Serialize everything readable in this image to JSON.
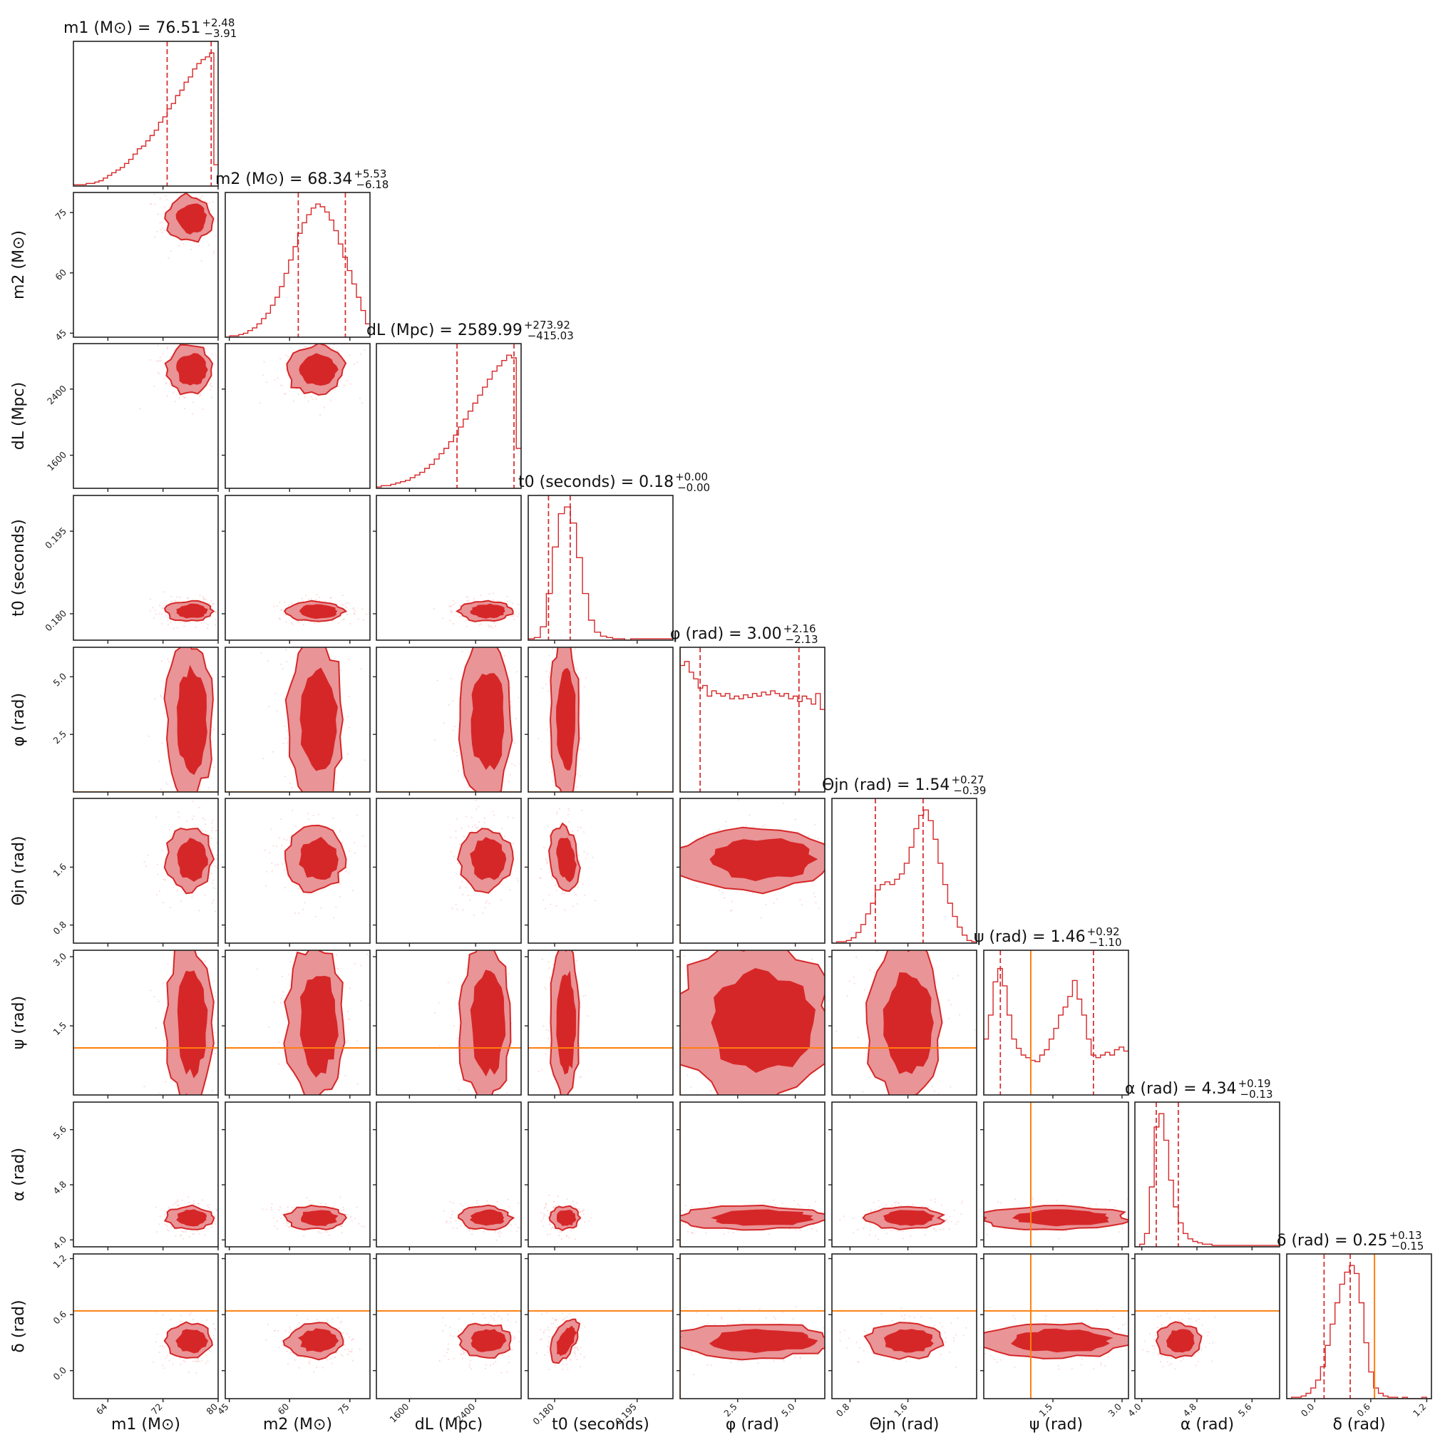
{
  "chart_data": {
    "type": "corner",
    "parameters": [
      {
        "key": "m1",
        "label": "m1 (M⊙)",
        "title": "m1 (M⊙) = 76.51",
        "median": 76.51,
        "plus": "+2.48",
        "minus": "−3.91",
        "range": [
          59,
          80
        ],
        "ticks": [
          64,
          72,
          80
        ],
        "tick_labels": [
          "64",
          "72",
          "80"
        ],
        "hist": [
          0.01,
          0.01,
          0.01,
          0.02,
          0.02,
          0.03,
          0.04,
          0.06,
          0.08,
          0.1,
          0.12,
          0.14,
          0.17,
          0.2,
          0.24,
          0.28,
          0.3,
          0.34,
          0.38,
          0.42,
          0.48,
          0.52,
          0.58,
          0.62,
          0.68,
          0.72,
          0.78,
          0.82,
          0.88,
          0.92,
          0.95,
          0.97,
          1.0,
          0.16
        ]
      },
      {
        "key": "m2",
        "label": "m2 (M⊙)",
        "title": "m2 (M⊙) = 68.34",
        "median": 68.34,
        "plus": "+5.53",
        "minus": "−6.18",
        "range": [
          44,
          80
        ],
        "ticks": [
          45,
          60,
          75
        ],
        "tick_labels": [
          "45",
          "60",
          "75"
        ],
        "hist": [
          0.0,
          0.01,
          0.01,
          0.02,
          0.03,
          0.05,
          0.07,
          0.1,
          0.14,
          0.18,
          0.24,
          0.3,
          0.38,
          0.48,
          0.58,
          0.68,
          0.78,
          0.86,
          0.92,
          0.97,
          1.0,
          0.98,
          0.94,
          0.88,
          0.8,
          0.7,
          0.6,
          0.5,
          0.4,
          0.3,
          0.2,
          0.1
        ]
      },
      {
        "key": "dL",
        "label": "dL (Mpc)",
        "title": "dL (Mpc) = 2589.99",
        "median": 2589.99,
        "plus": "+273.92",
        "minus": "−415.03",
        "range": [
          1200,
          2950
        ],
        "ticks": [
          1600,
          2400
        ],
        "tick_labels": [
          "1600",
          "2400"
        ],
        "hist": [
          0.01,
          0.02,
          0.02,
          0.03,
          0.04,
          0.05,
          0.06,
          0.08,
          0.1,
          0.12,
          0.15,
          0.18,
          0.22,
          0.26,
          0.3,
          0.35,
          0.4,
          0.46,
          0.52,
          0.58,
          0.64,
          0.7,
          0.76,
          0.82,
          0.88,
          0.92,
          0.96,
          1.0,
          0.98,
          0.3
        ]
      },
      {
        "key": "t0",
        "label": "t0 (seconds)",
        "title": "t0 (seconds) = 0.18",
        "median": 0.18,
        "plus": "+0.00",
        "minus": "−0.00",
        "range": [
          0.1752,
          0.2015
        ],
        "ticks": [
          0.18,
          0.195
        ],
        "tick_labels": [
          "0.180",
          "0.195"
        ],
        "hist": [
          0.01,
          0.02,
          0.1,
          0.35,
          0.7,
          0.95,
          1.0,
          0.88,
          0.62,
          0.35,
          0.15,
          0.06,
          0.03,
          0.02,
          0.01,
          0.01,
          0.0,
          0.01,
          0.01,
          0.01,
          0.01,
          0.01,
          0.01,
          0.01
        ]
      },
      {
        "key": "phi",
        "label": "φ (rad)",
        "title": "φ (rad) = 3.00",
        "median": 3.0,
        "plus": "+2.16",
        "minus": "−2.13",
        "range": [
          0.0,
          6.28
        ],
        "ticks": [
          2.5,
          5.0
        ],
        "tick_labels": [
          "2.5",
          "5.0"
        ],
        "hist": [
          0.95,
          0.98,
          0.9,
          0.85,
          0.78,
          0.8,
          0.72,
          0.76,
          0.74,
          0.72,
          0.74,
          0.7,
          0.72,
          0.7,
          0.73,
          0.71,
          0.74,
          0.72,
          0.75,
          0.73,
          0.76,
          0.74,
          0.72,
          0.74,
          0.7,
          0.72,
          0.68,
          0.72,
          0.7,
          0.66,
          0.74,
          0.62
        ]
      },
      {
        "key": "theta_jn",
        "label": "Θjn (rad)",
        "title": "Θjn (rad) = 1.54",
        "median": 1.54,
        "plus": "+0.27",
        "minus": "−0.39",
        "range": [
          0.55,
          2.55
        ],
        "ticks": [
          0.8,
          1.6
        ],
        "tick_labels": [
          "0.8",
          "1.6"
        ],
        "hist": [
          0.0,
          0.01,
          0.01,
          0.02,
          0.04,
          0.08,
          0.14,
          0.22,
          0.3,
          0.4,
          0.44,
          0.46,
          0.44,
          0.48,
          0.52,
          0.6,
          0.72,
          0.86,
          0.96,
          1.0,
          0.92,
          0.78,
          0.6,
          0.44,
          0.3,
          0.2,
          0.12,
          0.06,
          0.02,
          0.01
        ]
      },
      {
        "key": "psi",
        "label": "ψ (rad)",
        "title": "ψ (rad) = 1.46",
        "median": 1.46,
        "plus": "+0.92",
        "minus": "−1.10",
        "range": [
          0.0,
          3.14
        ],
        "ticks": [
          1.5,
          3.0
        ],
        "tick_labels": [
          "1.5",
          "3.0"
        ],
        "hist": [
          0.42,
          0.6,
          0.85,
          0.95,
          0.82,
          0.6,
          0.42,
          0.35,
          0.3,
          0.28,
          0.26,
          0.25,
          0.3,
          0.34,
          0.42,
          0.5,
          0.6,
          0.66,
          0.74,
          0.86,
          0.72,
          0.6,
          0.42,
          0.3,
          0.28,
          0.3,
          0.32,
          0.3,
          0.34,
          0.36,
          0.33
        ]
      },
      {
        "key": "alpha",
        "label": "α (rad)",
        "title": "α (rad) = 4.34",
        "median": 4.34,
        "plus": "+0.19",
        "minus": "−0.13",
        "range": [
          3.9,
          6.0
        ],
        "ticks": [
          4.0,
          4.8,
          5.6
        ],
        "tick_labels": [
          "4.0",
          "4.8",
          "5.6"
        ],
        "hist": [
          0.0,
          0.02,
          0.1,
          0.45,
          0.9,
          1.0,
          0.8,
          0.5,
          0.3,
          0.18,
          0.1,
          0.06,
          0.04,
          0.03,
          0.02,
          0.02,
          0.01,
          0.01,
          0.01,
          0.01,
          0.01,
          0.01,
          0.01,
          0.01,
          0.01,
          0.01,
          0.01,
          0.01,
          0.01,
          0.01
        ]
      },
      {
        "key": "delta",
        "label": "δ (rad)",
        "title": "δ (rad) = 0.25",
        "median": 0.25,
        "plus": "+0.13",
        "minus": "−0.15",
        "range": [
          -0.3,
          1.25
        ],
        "ticks": [
          0.0,
          0.6,
          1.2
        ],
        "tick_labels": [
          "0.0",
          "0.6",
          "1.2"
        ],
        "hist": [
          0.0,
          0.01,
          0.01,
          0.02,
          0.04,
          0.08,
          0.14,
          0.24,
          0.4,
          0.56,
          0.72,
          0.86,
          0.95,
          1.0,
          0.94,
          0.72,
          0.42,
          0.2,
          0.08,
          0.04,
          0.02,
          0.01,
          0.01,
          0.0,
          0.01,
          0.0,
          0.0,
          0.0,
          0.01,
          0.0
        ]
      }
    ],
    "truth_lines": {
      "phi": 0.0,
      "psi": 1.02,
      "delta": 0.64
    },
    "scatter_color": "#f4a0a0",
    "contour_colors": {
      "inner": "#d62728",
      "outer": "#e99497"
    },
    "truth_color": "#ff7f0e"
  }
}
